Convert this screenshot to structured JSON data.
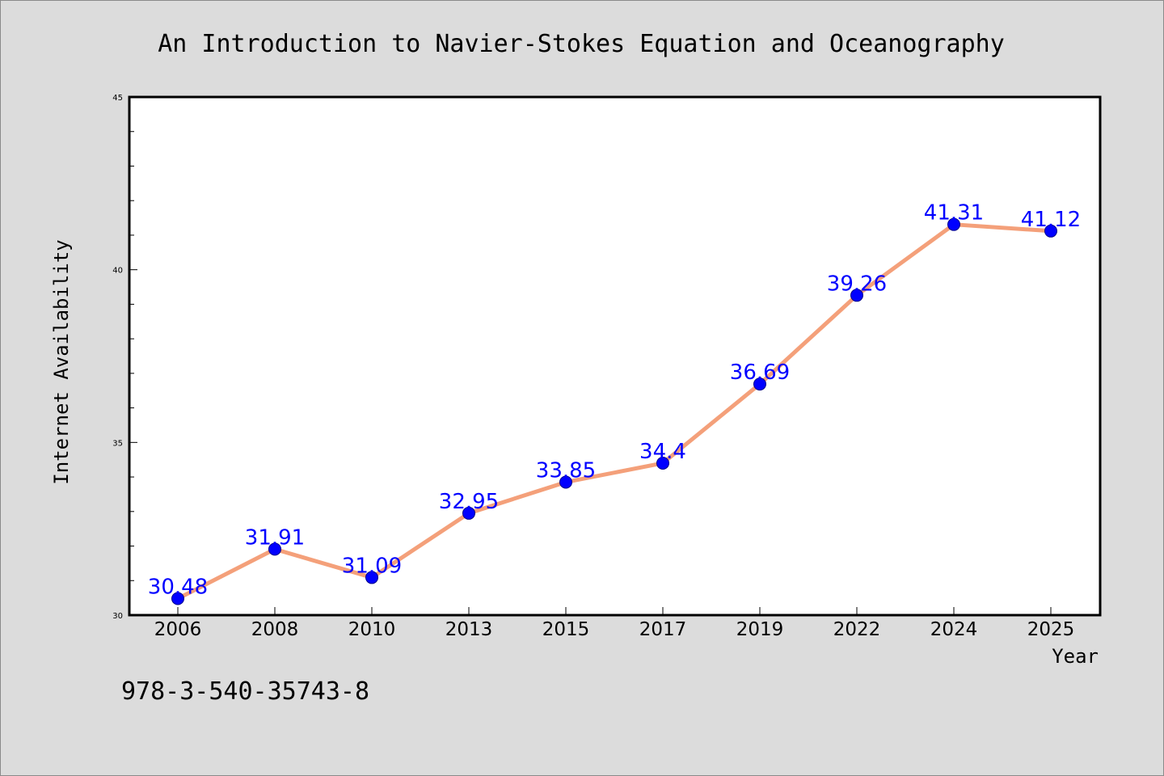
{
  "colors": {
    "background": "#dcdcdc",
    "plot_area": "#ffffff",
    "line": "#f4a07a",
    "marker": "#0000ff",
    "data_label": "#0000ff"
  },
  "footer": {
    "isbn": "978-3-540-35743-8"
  },
  "chart_data": {
    "type": "line",
    "title": "An Introduction to Navier-Stokes Equation and Oceanography",
    "xlabel": "Year",
    "ylabel": "Internet Availability",
    "categories": [
      "2006",
      "2008",
      "2010",
      "2013",
      "2015",
      "2017",
      "2019",
      "2022",
      "2024",
      "2025"
    ],
    "series": [
      {
        "values": [
          30.48,
          31.91,
          31.09,
          32.95,
          33.85,
          34.4,
          36.69,
          39.26,
          41.31,
          41.12
        ]
      }
    ],
    "data_labels": [
      "30.48",
      "31.91",
      "31.09",
      "32.95",
      "33.85",
      "34.4",
      "36.69",
      "39.26",
      "41.31",
      "41.12"
    ],
    "ylim": [
      30,
      45
    ],
    "yticks": [
      30,
      35,
      40,
      45
    ],
    "ytick_labels": [
      "30",
      "35",
      "40",
      "45"
    ],
    "grid": false,
    "legend": "none"
  }
}
